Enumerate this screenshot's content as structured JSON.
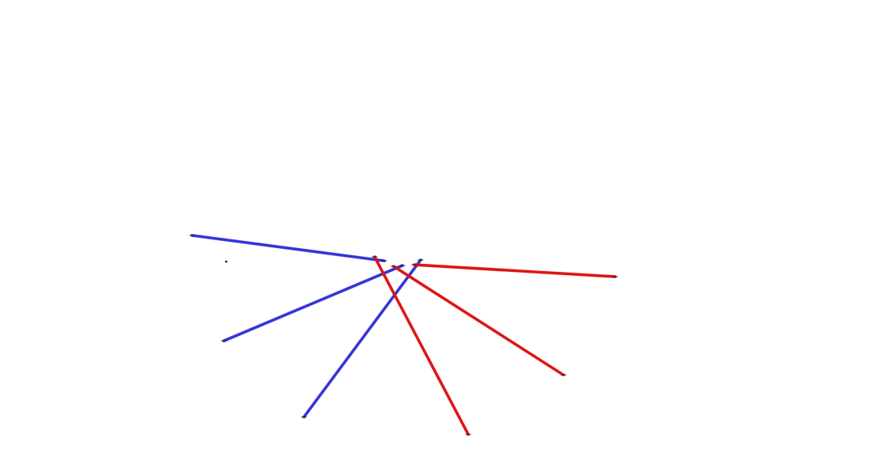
{
  "colors": {
    "background": "#ffffff",
    "blue": "#3434d6",
    "red": "#dd1414",
    "endpoint": "#1b1b1b"
  },
  "segments": [
    {
      "name": "blue-line-1",
      "color": "blue"
    },
    {
      "name": "blue-line-2",
      "color": "blue"
    },
    {
      "name": "blue-line-3",
      "color": "blue"
    },
    {
      "name": "red-line-1",
      "color": "red"
    },
    {
      "name": "red-line-2",
      "color": "red"
    },
    {
      "name": "red-line-3",
      "color": "red"
    }
  ]
}
